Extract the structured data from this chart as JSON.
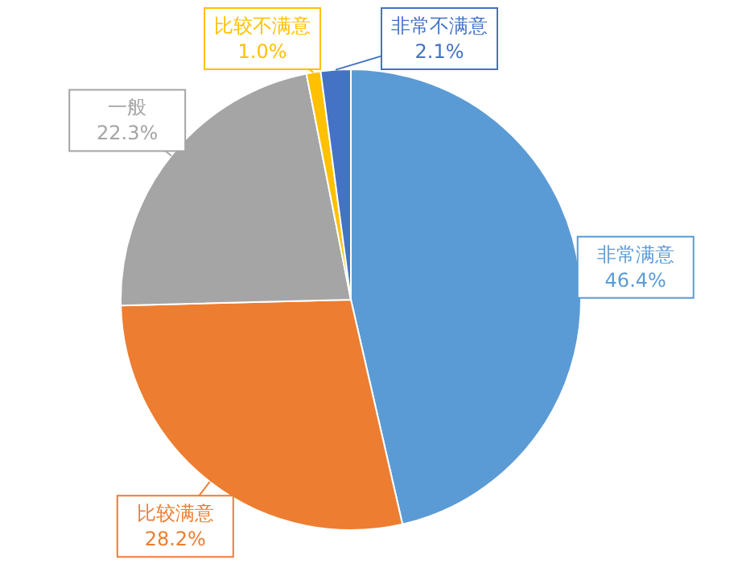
{
  "chart_data": {
    "type": "pie",
    "categories": [
      "非常满意",
      "比较满意",
      "一般",
      "比较不满意",
      "非常不满意"
    ],
    "values": [
      46.4,
      28.2,
      22.3,
      1.0,
      2.1
    ],
    "value_labels": [
      "46.4%",
      "28.2%",
      "22.3%",
      "1.0%",
      "2.1%"
    ],
    "colors": [
      "#5b9bd5",
      "#ed7d31",
      "#a5a5a5",
      "#ffc000",
      "#4472c4"
    ]
  }
}
